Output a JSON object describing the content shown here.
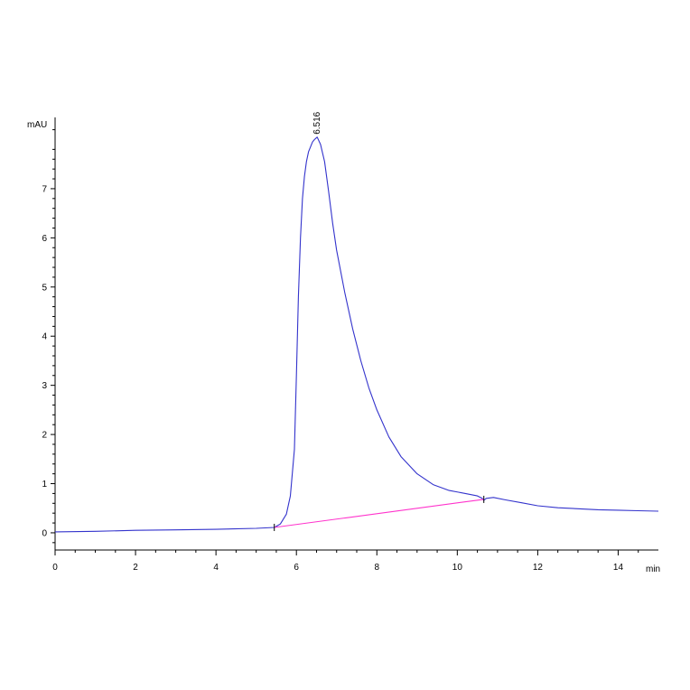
{
  "chart_data": {
    "type": "line",
    "xlabel": "min",
    "ylabel": "mAU",
    "xlim": [
      0,
      15
    ],
    "ylim": [
      -0.35,
      8.45
    ],
    "x_ticks": [
      0,
      2,
      4,
      6,
      8,
      10,
      12,
      14
    ],
    "y_ticks": [
      0,
      1,
      2,
      3,
      4,
      5,
      6,
      7
    ],
    "grid": false,
    "series": [
      {
        "color": "#3333cc",
        "x": [
          0,
          1,
          2,
          3,
          4,
          5,
          5.45,
          5.6,
          5.75,
          5.85,
          5.95,
          6.0,
          6.05,
          6.1,
          6.15,
          6.2,
          6.25,
          6.3,
          6.35,
          6.4,
          6.45,
          6.516,
          6.6,
          6.7,
          6.8,
          6.9,
          7.0,
          7.2,
          7.4,
          7.6,
          7.8,
          8.0,
          8.3,
          8.6,
          9.0,
          9.4,
          9.8,
          10.2,
          10.5,
          10.62,
          10.66,
          10.72,
          10.9,
          11.2,
          11.6,
          12.0,
          12.5,
          13.0,
          13.5,
          14.0,
          14.5,
          15.0
        ],
        "y": [
          0.02,
          0.03,
          0.05,
          0.06,
          0.07,
          0.09,
          0.11,
          0.18,
          0.38,
          0.75,
          1.7,
          3.2,
          4.8,
          6.0,
          6.8,
          7.25,
          7.55,
          7.75,
          7.85,
          7.95,
          8.0,
          8.05,
          7.9,
          7.55,
          6.95,
          6.3,
          5.75,
          4.9,
          4.15,
          3.5,
          2.95,
          2.5,
          1.95,
          1.55,
          1.2,
          0.98,
          0.86,
          0.8,
          0.75,
          0.7,
          0.66,
          0.7,
          0.72,
          0.67,
          0.61,
          0.55,
          0.51,
          0.49,
          0.47,
          0.46,
          0.45,
          0.44
        ]
      },
      {
        "color": "#ff33cc",
        "x": [
          5.45,
          10.66
        ],
        "y": [
          0.11,
          0.68
        ]
      }
    ],
    "annotations": [
      {
        "text": "6.516",
        "x": 6.516
      }
    ]
  }
}
